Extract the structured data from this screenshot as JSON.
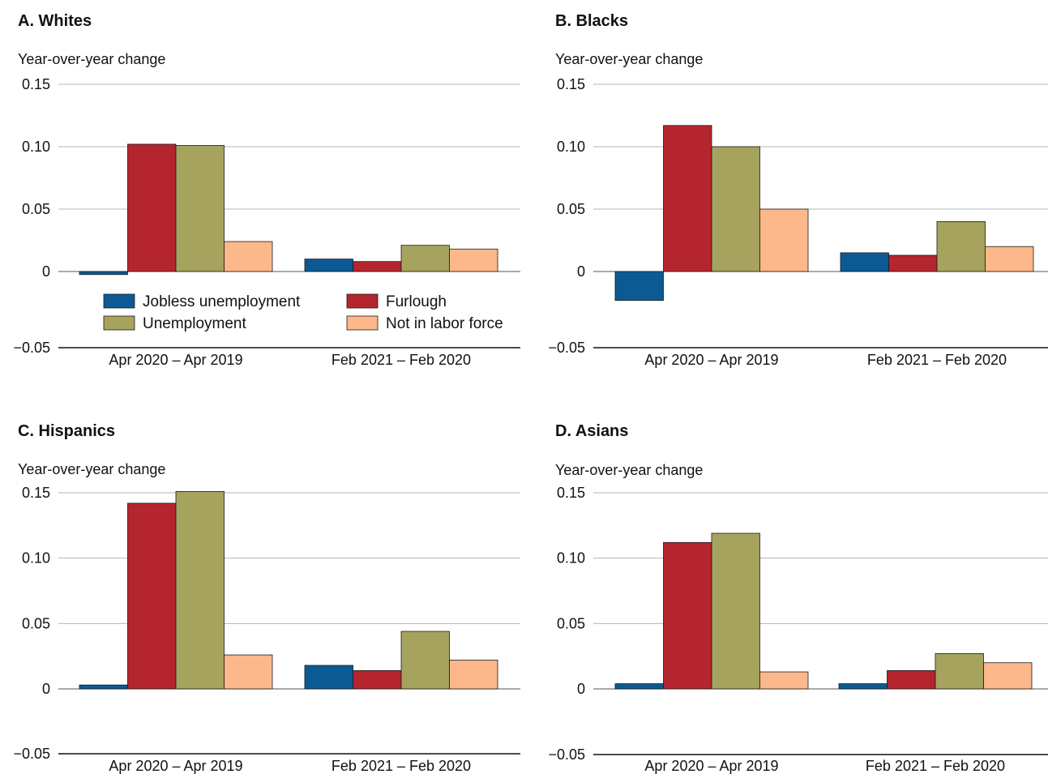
{
  "colors": {
    "jobless": "#0b5a94",
    "furlough": "#b5252e",
    "unemployment": "#a6a35e",
    "nilf": "#fcb88a",
    "grid": "#b5b5b5",
    "axis": "#111111",
    "bar_stroke": "#1a1a1a"
  },
  "chart_data": [
    {
      "type": "bar",
      "title": "A. Whites",
      "ylabel": "Year-over-year change",
      "ylim": [
        -0.05,
        0.15
      ],
      "yticks": [
        "0.15",
        "0.10",
        "0.05",
        "0",
        "−0.05"
      ],
      "ytick_values": [
        0.15,
        0.1,
        0.05,
        0,
        -0.05
      ],
      "categories": [
        "Apr 2020 – Apr 2019",
        "Feb 2021 – Feb 2020"
      ],
      "legend": "inside-lower",
      "series": [
        {
          "name": "Jobless unemployment",
          "key": "jobless",
          "values": [
            -0.002,
            0.01
          ]
        },
        {
          "name": "Furlough",
          "key": "furlough",
          "values": [
            0.102,
            0.008
          ]
        },
        {
          "name": "Unemployment",
          "key": "unemployment",
          "values": [
            0.101,
            0.021
          ]
        },
        {
          "name": "Not in labor force",
          "key": "nilf",
          "values": [
            0.024,
            0.018
          ]
        }
      ]
    },
    {
      "type": "bar",
      "title": "B. Blacks",
      "ylabel": "Year-over-year change",
      "ylim": [
        -0.05,
        0.15
      ],
      "yticks": [
        "0.15",
        "0.10",
        "0.05",
        "0",
        "−0.05"
      ],
      "ytick_values": [
        0.15,
        0.1,
        0.05,
        0,
        -0.05
      ],
      "categories": [
        "Apr 2020 – Apr 2019",
        "Feb 2021 – Feb 2020"
      ],
      "series": [
        {
          "name": "Jobless unemployment",
          "key": "jobless",
          "values": [
            -0.019,
            0.015
          ]
        },
        {
          "name": "Furlough",
          "key": "furlough",
          "values": [
            0.117,
            0.013
          ]
        },
        {
          "name": "Unemployment",
          "key": "unemployment",
          "values": [
            0.1,
            0.04
          ]
        },
        {
          "name": "Not in labor force",
          "key": "nilf",
          "values": [
            0.05,
            0.02
          ]
        }
      ]
    },
    {
      "type": "bar",
      "title": "C. Hispanics",
      "ylabel": "Year-over-year change",
      "ylim": [
        -0.05,
        0.15
      ],
      "yticks": [
        "0.15",
        "0.10",
        "0.05",
        "0",
        "−0.05"
      ],
      "ytick_values": [
        0.15,
        0.1,
        0.05,
        0,
        -0.05
      ],
      "categories": [
        "Apr 2020 – Apr 2019",
        "Feb 2021 – Feb 2020"
      ],
      "series": [
        {
          "name": "Jobless unemployment",
          "key": "jobless",
          "values": [
            0.003,
            0.018
          ]
        },
        {
          "name": "Furlough",
          "key": "furlough",
          "values": [
            0.142,
            0.014
          ]
        },
        {
          "name": "Unemployment",
          "key": "unemployment",
          "values": [
            0.151,
            0.044
          ]
        },
        {
          "name": "Not in labor force",
          "key": "nilf",
          "values": [
            0.026,
            0.022
          ]
        }
      ]
    },
    {
      "type": "bar",
      "title": "D. Asians",
      "ylabel": "Year-over-year change",
      "ylim": [
        -0.05,
        0.15
      ],
      "yticks": [
        "0.15",
        "0.10",
        "0.05",
        "0",
        "−0.05"
      ],
      "ytick_values": [
        0.15,
        0.1,
        0.05,
        0,
        -0.05
      ],
      "categories": [
        "Apr 2020 – Apr 2019",
        "Feb 2021 – Feb 2020"
      ],
      "series": [
        {
          "name": "Jobless unemployment",
          "key": "jobless",
          "values": [
            0.004,
            0.004
          ]
        },
        {
          "name": "Furlough",
          "key": "furlough",
          "values": [
            0.112,
            0.014
          ]
        },
        {
          "name": "Unemployment",
          "key": "unemployment",
          "values": [
            0.119,
            0.027
          ]
        },
        {
          "name": "Not in labor force",
          "key": "nilf",
          "values": [
            0.013,
            0.02
          ]
        }
      ]
    }
  ]
}
